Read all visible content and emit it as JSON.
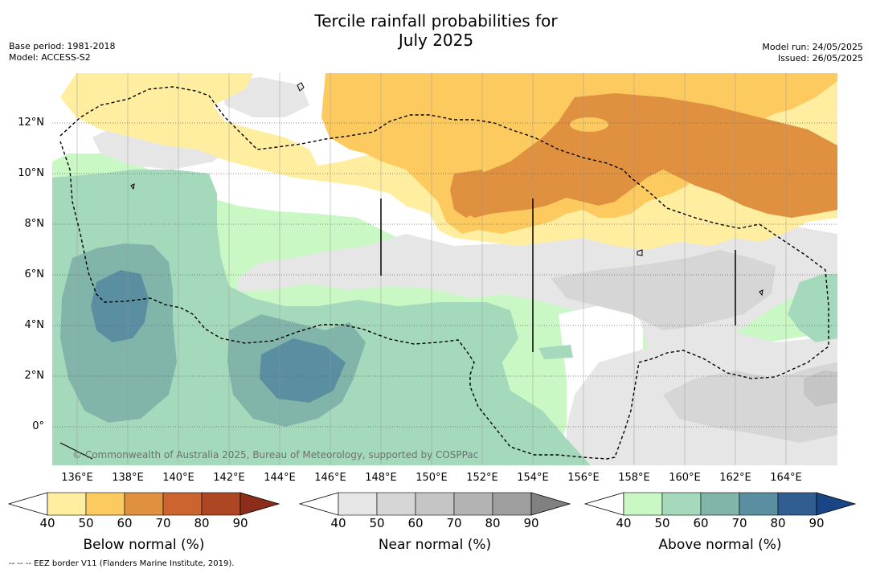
{
  "title_line1": "Tercile rainfall probabilities for",
  "title_line2": "July 2025",
  "base_period": "Base period: 1981-2018",
  "model": "Model: ACCESS-S2",
  "model_run": "Model run: 24/05/2025",
  "issued": "Issued: 26/05/2025",
  "lat_labels": [
    "12°N",
    "10°N",
    "8°N",
    "6°N",
    "4°N",
    "2°N",
    "0°"
  ],
  "lon_labels": [
    "136°E",
    "138°E",
    "140°E",
    "142°E",
    "144°E",
    "146°E",
    "148°E",
    "150°E",
    "152°E",
    "154°E",
    "156°E",
    "158°E",
    "160°E",
    "162°E",
    "164°E"
  ],
  "copyright": "© Commonwealth of Australia 2025, Bureau of Meteorology, supported by COSPPac",
  "colorbars": [
    {
      "title": "Below normal (%)",
      "ticks": [
        "40",
        "50",
        "60",
        "70",
        "80",
        "90"
      ],
      "colors": [
        "#ffeea0",
        "#fdca60",
        "#e09140",
        "#cc6430",
        "#ad4622",
        "#8b2d1a"
      ]
    },
    {
      "title": "Near normal (%)",
      "ticks": [
        "40",
        "50",
        "60",
        "70",
        "80",
        "90"
      ],
      "colors": [
        "#e6e6e6",
        "#d6d6d6",
        "#c5c5c5",
        "#b3b3b3",
        "#9f9f9f",
        "#808080"
      ]
    },
    {
      "title": "Above normal (%)",
      "ticks": [
        "40",
        "50",
        "60",
        "70",
        "80",
        "90"
      ],
      "colors": [
        "#c9f8c5",
        "#a5d9bb",
        "#82b5a9",
        "#5a8ea1",
        "#315e92",
        "#1a4585"
      ]
    }
  ],
  "footnote": "--  --  -- EEZ border V11 (Flanders Marine Institute, 2019)."
}
